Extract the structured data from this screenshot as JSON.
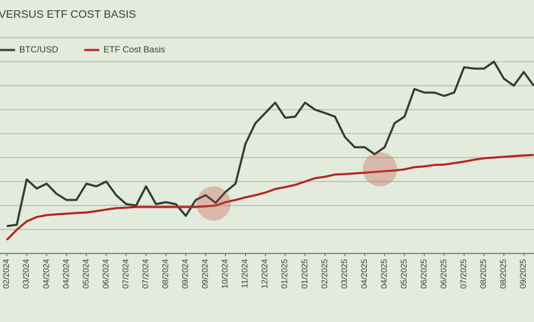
{
  "chart_data": {
    "type": "line",
    "title": "VERSUS ETF COST BASIS",
    "x": [
      0,
      0.5,
      1,
      1.5,
      2,
      2.5,
      3,
      3.5,
      4,
      4.5,
      5,
      5.5,
      6,
      6.5,
      7,
      7.5,
      8,
      8.5,
      9,
      9.5,
      10,
      10.5,
      11,
      11.5,
      12,
      12.5,
      13,
      13.5,
      14,
      14.5,
      15,
      15.5,
      16,
      16.5,
      17,
      17.5,
      18,
      18.5,
      19,
      19.5,
      20,
      20.5,
      21,
      21.5,
      22,
      22.5,
      23,
      23.5,
      24,
      24.5,
      25,
      25.5,
      26,
      26.5
    ],
    "series": [
      {
        "name": "BTC/USD",
        "color": "#2f3a36",
        "values": [
          51400,
          52000,
          70900,
          67100,
          69100,
          64900,
          62300,
          62300,
          69100,
          68000,
          70000,
          64300,
          60600,
          60000,
          68000,
          60600,
          61400,
          60600,
          55700,
          62300,
          64300,
          61100,
          65700,
          69100,
          85700,
          94300,
          98600,
          102900,
          96600,
          97100,
          102900,
          100000,
          98600,
          97100,
          88600,
          84300,
          84300,
          81400,
          84300,
          94300,
          97100,
          108600,
          107100,
          107100,
          105700,
          107100,
          117700,
          117100,
          117100,
          120000,
          112900,
          110000,
          115700,
          110000
        ]
      },
      {
        "name": "ETF Cost Basis",
        "color": "#b5231c",
        "values": [
          45700,
          49900,
          53400,
          55200,
          56000,
          56300,
          56600,
          56900,
          57100,
          57700,
          58300,
          58900,
          59100,
          59400,
          59400,
          59400,
          59400,
          59400,
          59400,
          59400,
          59700,
          60000,
          61400,
          62300,
          63400,
          64300,
          65400,
          66900,
          67700,
          68600,
          70000,
          71400,
          72000,
          72900,
          73100,
          73400,
          73700,
          74000,
          74300,
          74600,
          75100,
          76000,
          76300,
          76900,
          77100,
          77700,
          78300,
          79100,
          79700,
          80000,
          80300,
          80600,
          80900,
          81100
        ]
      }
    ],
    "xlim": [
      -0.35,
      26.5
    ],
    "xticks": [
      {
        "value": 0,
        "label": "02/2024"
      },
      {
        "value": 1,
        "label": "03/2024"
      },
      {
        "value": 2,
        "label": "04/2024"
      },
      {
        "value": 3,
        "label": "04/2024"
      },
      {
        "value": 4,
        "label": "05/2024"
      },
      {
        "value": 5,
        "label": "06/2024"
      },
      {
        "value": 6,
        "label": "07/2024"
      },
      {
        "value": 7,
        "label": "07/2024"
      },
      {
        "value": 8,
        "label": "08/2024"
      },
      {
        "value": 9,
        "label": "09/2024"
      },
      {
        "value": 10,
        "label": "09/2024"
      },
      {
        "value": 11,
        "label": "10/2024"
      },
      {
        "value": 12,
        "label": "11/2024"
      },
      {
        "value": 13,
        "label": "12/2024"
      },
      {
        "value": 14,
        "label": "01/2025"
      },
      {
        "value": 15,
        "label": "01/2025"
      },
      {
        "value": 16,
        "label": "02/2025"
      },
      {
        "value": 17,
        "label": "03/2025"
      },
      {
        "value": 18,
        "label": "04/2025"
      },
      {
        "value": 19,
        "label": "04/2025"
      },
      {
        "value": 20,
        "label": "05/2025"
      },
      {
        "value": 21,
        "label": "06/2025"
      },
      {
        "value": 22,
        "label": "06/2025"
      },
      {
        "value": 23,
        "label": "07/2025"
      },
      {
        "value": 24,
        "label": "08/2025"
      },
      {
        "value": 25,
        "label": "08/2025"
      },
      {
        "value": 26,
        "label": "09/2025"
      }
    ],
    "ylim": [
      40000,
      140000
    ],
    "yticks": [
      40000,
      50000,
      60000,
      70000,
      80000,
      90000,
      100000,
      110000,
      120000,
      130000
    ],
    "grid": true,
    "legend": "top-left"
  }
}
